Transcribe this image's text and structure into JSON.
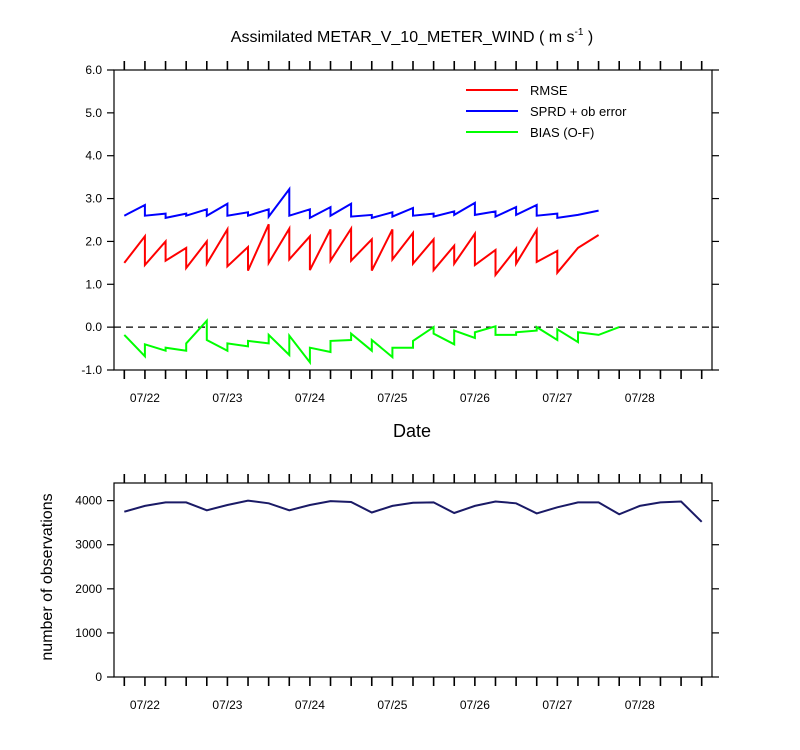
{
  "title": {
    "main": "Assimilated METAR_V_10_METER_WIND ( m s",
    "sup": "-1",
    "close": " )"
  },
  "chart_data": [
    {
      "type": "line",
      "title": "Assimilated METAR_V_10_METER_WIND ( m s-1 )",
      "xlabel": "Date",
      "ylabel": "",
      "ylim": [
        -1.0,
        6.0
      ],
      "yticks": [
        -1.0,
        0.0,
        1.0,
        2.0,
        3.0,
        4.0,
        5.0,
        6.0
      ],
      "ytick_labels": [
        "-1.0",
        "0.0",
        "1.0",
        "2.0",
        "3.0",
        "4.0",
        "5.0",
        "6.0"
      ],
      "xlim": [
        -0.5,
        28.5
      ],
      "x_tick_labels": [
        "07/22",
        "07/23",
        "07/24",
        "07/25",
        "07/26",
        "07/27",
        "07/28"
      ],
      "x_tick_index": [
        1,
        5,
        9,
        13,
        17,
        21,
        25
      ],
      "grid": false,
      "legend_position": "top-right",
      "reference_line": {
        "y": 0.0,
        "style": "dashed"
      },
      "series": [
        {
          "name": "RMSE",
          "color": "#ff0000",
          "values": [
            [
              1.5,
              2.12
            ],
            [
              1.45,
              2.0
            ],
            [
              1.55,
              1.85
            ],
            [
              1.38,
              2.0
            ],
            [
              1.48,
              2.28
            ],
            [
              1.42,
              1.87
            ],
            [
              1.32,
              2.4
            ],
            [
              1.5,
              2.3
            ],
            [
              1.58,
              2.12
            ],
            [
              1.33,
              2.28
            ],
            [
              1.55,
              2.3
            ],
            [
              1.55,
              2.05
            ],
            [
              1.32,
              2.28
            ],
            [
              1.58,
              2.2
            ],
            [
              1.48,
              2.05
            ],
            [
              1.33,
              1.9
            ],
            [
              1.48,
              2.18
            ],
            [
              1.45,
              1.8
            ],
            [
              1.22,
              1.83
            ],
            [
              1.48,
              2.27
            ],
            [
              1.52,
              1.78
            ],
            [
              1.27,
              1.85
            ]
          ],
          "final": 2.15
        },
        {
          "name": "SPRD + ob error",
          "color": "#0000ff",
          "values": [
            [
              2.6,
              2.85
            ],
            [
              2.6,
              2.65
            ],
            [
              2.55,
              2.65
            ],
            [
              2.6,
              2.75
            ],
            [
              2.6,
              2.88
            ],
            [
              2.6,
              2.68
            ],
            [
              2.6,
              2.75
            ],
            [
              2.58,
              3.22
            ],
            [
              2.6,
              2.75
            ],
            [
              2.55,
              2.8
            ],
            [
              2.6,
              2.88
            ],
            [
              2.58,
              2.62
            ],
            [
              2.55,
              2.68
            ],
            [
              2.58,
              2.78
            ],
            [
              2.6,
              2.65
            ],
            [
              2.58,
              2.7
            ],
            [
              2.62,
              2.9
            ],
            [
              2.62,
              2.7
            ],
            [
              2.58,
              2.8
            ],
            [
              2.62,
              2.85
            ],
            [
              2.6,
              2.65
            ],
            [
              2.55,
              2.62
            ]
          ],
          "final": 2.72
        },
        {
          "name": "BIAS (O-F)",
          "color": "#00ff00",
          "values": [
            [
              -0.18,
              -0.68
            ],
            [
              -0.4,
              -0.55
            ],
            [
              -0.48,
              -0.55
            ],
            [
              -0.38,
              0.15
            ],
            [
              -0.3,
              -0.55
            ],
            [
              -0.38,
              -0.45
            ],
            [
              -0.32,
              -0.38
            ],
            [
              -0.18,
              -0.65
            ],
            [
              -0.2,
              -0.82
            ],
            [
              -0.48,
              -0.58
            ],
            [
              -0.32,
              -0.3
            ],
            [
              -0.15,
              -0.55
            ],
            [
              -0.3,
              -0.7
            ],
            [
              -0.48,
              -0.48
            ],
            [
              -0.32,
              0.0
            ],
            [
              -0.15,
              -0.4
            ],
            [
              -0.08,
              -0.25
            ],
            [
              -0.12,
              0.02
            ],
            [
              -0.18,
              -0.18
            ],
            [
              -0.12,
              -0.08
            ],
            [
              0.0,
              -0.3
            ],
            [
              -0.05,
              -0.35
            ],
            [
              -0.12,
              -0.18
            ]
          ],
          "final": 0.0
        }
      ]
    },
    {
      "type": "line",
      "title": "",
      "xlabel": "",
      "ylabel": "number of observations",
      "ylim": [
        0,
        4400
      ],
      "yticks": [
        0,
        1000,
        2000,
        3000,
        4000
      ],
      "ytick_labels": [
        "0",
        "1000",
        "2000",
        "3000",
        "4000"
      ],
      "xlim": [
        -0.5,
        28.5
      ],
      "x_tick_labels": [
        "07/22",
        "07/23",
        "07/24",
        "07/25",
        "07/26",
        "07/27",
        "07/28"
      ],
      "x_tick_index": [
        1,
        5,
        9,
        13,
        17,
        21,
        25
      ],
      "grid": false,
      "series": [
        {
          "color": "#1a1a66",
          "x": [
            0,
            1,
            2,
            3,
            4,
            5,
            6,
            7,
            8,
            9,
            10,
            11,
            12,
            13,
            14,
            15,
            16,
            17,
            18,
            19,
            20,
            21,
            22,
            23,
            24,
            25,
            26,
            27,
            28
          ],
          "values": [
            3750,
            3880,
            3960,
            3960,
            3780,
            3900,
            4000,
            3940,
            3780,
            3900,
            3990,
            3970,
            3730,
            3880,
            3950,
            3960,
            3720,
            3880,
            3980,
            3940,
            3710,
            3850,
            3960,
            3960,
            3690,
            3880,
            3960,
            3980,
            3520
          ]
        }
      ]
    }
  ]
}
